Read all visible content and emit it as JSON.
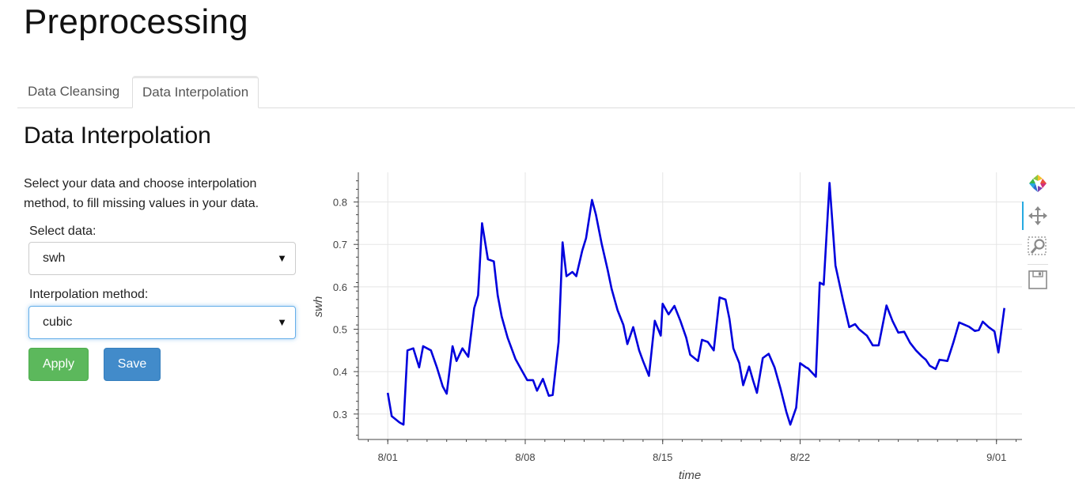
{
  "page": {
    "title": "Preprocessing"
  },
  "tabs": [
    {
      "label": "Data Cleansing",
      "active": false
    },
    {
      "label": "Data Interpolation",
      "active": true
    }
  ],
  "section": {
    "title": "Data Interpolation",
    "description": "Select your data and choose interpolation method, to fill missing values in your data."
  },
  "form": {
    "select_data_label": "Select data:",
    "select_data_value": "swh",
    "method_label": "Interpolation method:",
    "method_value": "cubic",
    "apply_label": "Apply",
    "save_label": "Save"
  },
  "toolbar": {
    "icons": [
      "bokeh-logo-icon",
      "pan-icon",
      "box-zoom-icon",
      "save-icon"
    ],
    "active_tool": "pan-icon"
  },
  "colors": {
    "line": "#0000dd",
    "apply": "#5cb85c",
    "save": "#428bca",
    "active_tool": "#26aae1"
  },
  "chart_data": {
    "type": "line",
    "xlabel": "time",
    "ylabel": "swh",
    "x_ticks": [
      "8/01",
      "8/08",
      "8/15",
      "8/22",
      "9/01"
    ],
    "x_tick_days": [
      0,
      7,
      14,
      21,
      31
    ],
    "y_ticks": [
      0.3,
      0.4,
      0.5,
      0.6,
      0.7,
      0.8
    ],
    "xlim_days": [
      -1.5,
      32.3
    ],
    "ylim": [
      0.24,
      0.87
    ],
    "grid": true,
    "series": [
      {
        "x_days": [
          0.0,
          0.2,
          0.6,
          0.8,
          1.0,
          1.3,
          1.6,
          1.8,
          2.2,
          2.5,
          2.8,
          3.0,
          3.3,
          3.5,
          3.8,
          4.1,
          4.4,
          4.6,
          4.8,
          5.1,
          5.4,
          5.6,
          5.8,
          6.1,
          6.5,
          6.8,
          7.1,
          7.4,
          7.6,
          7.9,
          8.2,
          8.4,
          8.7,
          8.9,
          9.1,
          9.4,
          9.6,
          9.9,
          10.1,
          10.4,
          10.6,
          10.9,
          11.2,
          11.4,
          11.7,
          12.0,
          12.2,
          12.5,
          12.8,
          13.0,
          13.3,
          13.6,
          13.9,
          14.0,
          14.3,
          14.6,
          14.9,
          15.2,
          15.4,
          15.8,
          16.0,
          16.3,
          16.6,
          16.9,
          17.2,
          17.4,
          17.6,
          17.9,
          18.1,
          18.4,
          18.6,
          18.8,
          19.1,
          19.4,
          19.7,
          20.0,
          20.3,
          20.5,
          20.8,
          21.0,
          21.3,
          21.4,
          21.8,
          22.0,
          22.2,
          22.5,
          22.8,
          23.2,
          23.5,
          23.8,
          24.0,
          24.4,
          24.7,
          25.0,
          25.4,
          25.7,
          26.0,
          26.3,
          26.6,
          26.9,
          27.2,
          27.4,
          27.6,
          27.9,
          28.1,
          28.5,
          28.8,
          29.1,
          29.3,
          29.6,
          29.9,
          30.1,
          30.3,
          30.6,
          30.9,
          31.1,
          31.4
        ],
        "y": [
          0.35,
          0.295,
          0.28,
          0.275,
          0.45,
          0.455,
          0.41,
          0.46,
          0.45,
          0.41,
          0.365,
          0.348,
          0.46,
          0.425,
          0.455,
          0.435,
          0.55,
          0.58,
          0.75,
          0.665,
          0.66,
          0.58,
          0.53,
          0.48,
          0.43,
          0.405,
          0.38,
          0.38,
          0.355,
          0.383,
          0.343,
          0.345,
          0.47,
          0.705,
          0.625,
          0.635,
          0.625,
          0.685,
          0.715,
          0.805,
          0.77,
          0.7,
          0.64,
          0.595,
          0.545,
          0.51,
          0.465,
          0.505,
          0.45,
          0.425,
          0.39,
          0.52,
          0.485,
          0.56,
          0.535,
          0.555,
          0.52,
          0.48,
          0.44,
          0.425,
          0.475,
          0.47,
          0.45,
          0.575,
          0.57,
          0.525,
          0.455,
          0.42,
          0.368,
          0.412,
          0.38,
          0.35,
          0.432,
          0.442,
          0.41,
          0.36,
          0.305,
          0.275,
          0.315,
          0.42,
          0.41,
          0.408,
          0.388,
          0.61,
          0.605,
          0.845,
          0.65,
          0.565,
          0.505,
          0.512,
          0.5,
          0.485,
          0.462,
          0.462,
          0.556,
          0.52,
          0.492,
          0.494,
          0.468,
          0.45,
          0.436,
          0.428,
          0.414,
          0.406,
          0.428,
          0.425,
          0.468,
          0.516,
          0.512,
          0.506,
          0.496,
          0.498,
          0.518,
          0.505,
          0.495,
          0.445,
          0.55
        ]
      }
    ]
  }
}
